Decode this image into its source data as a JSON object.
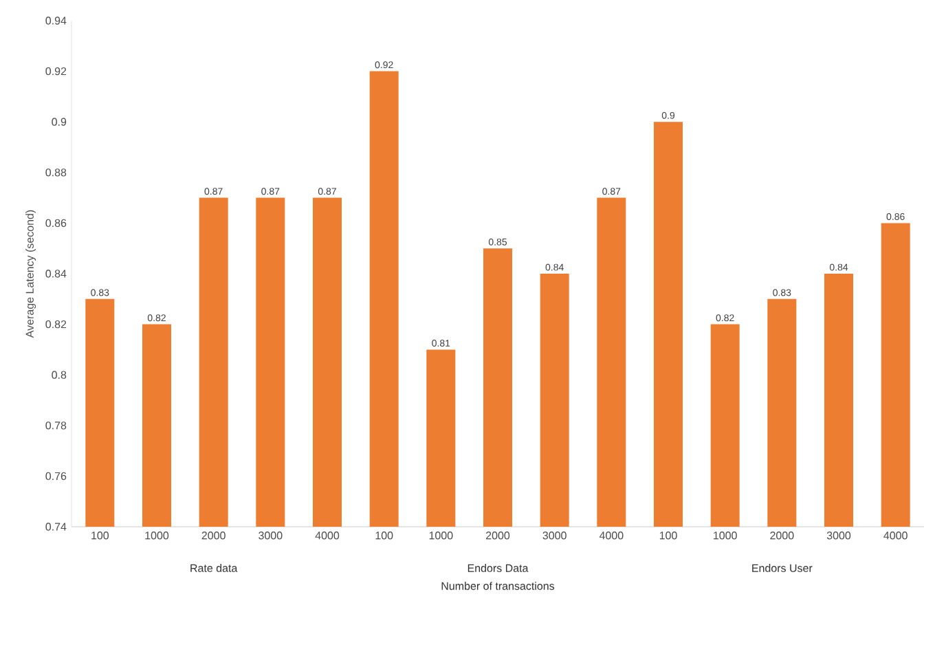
{
  "chart_data": {
    "type": "bar",
    "categories": [
      "100",
      "1000",
      "2000",
      "3000",
      "4000",
      "100",
      "1000",
      "2000",
      "3000",
      "4000",
      "100",
      "1000",
      "2000",
      "3000",
      "4000"
    ],
    "values": [
      0.83,
      0.82,
      0.87,
      0.87,
      0.87,
      0.92,
      0.81,
      0.85,
      0.84,
      0.87,
      0.9,
      0.82,
      0.83,
      0.84,
      0.86
    ],
    "color": "#ed7d31",
    "ylim": [
      0.74,
      0.94
    ],
    "yticks": [
      0.74,
      0.76,
      0.78,
      0.8,
      0.82,
      0.84,
      0.86,
      0.88,
      0.9,
      0.92,
      0.94
    ],
    "data_labels": true,
    "xlabel": "Number of transactions",
    "ylabel": "Average Latency (second)",
    "annotations": [
      "Rate data",
      "Endors Data",
      "Endors User"
    ]
  }
}
